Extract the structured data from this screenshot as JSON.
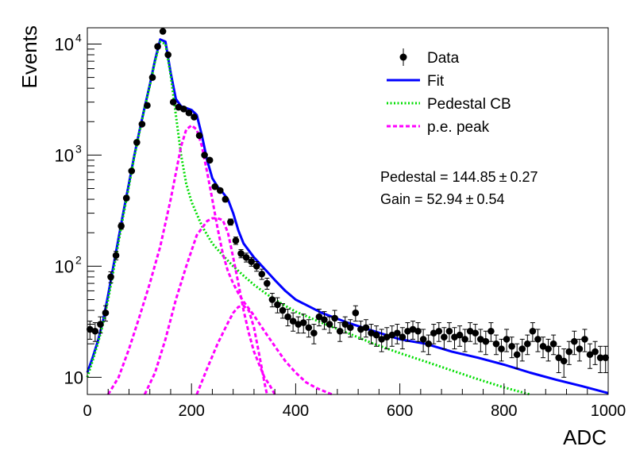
{
  "chart_data": {
    "type": "scatter",
    "xlabel": "ADC",
    "ylabel": "Events",
    "xlim": [
      0,
      1000
    ],
    "ylim": [
      7,
      14000
    ],
    "yscale": "log",
    "x_ticks": [
      0,
      200,
      400,
      600,
      800,
      1000
    ],
    "x_tick_labels": [
      "0",
      "200",
      "400",
      "600",
      "800",
      "1000"
    ],
    "y_ticks": [
      10,
      100,
      1000,
      10000
    ],
    "y_tick_labels": [
      {
        "base": "10",
        "exp": ""
      },
      {
        "base": "10",
        "exp": "2"
      },
      {
        "base": "10",
        "exp": "3"
      },
      {
        "base": "10",
        "exp": "4"
      }
    ],
    "legend": {
      "placement": "top-right",
      "entries": [
        {
          "label": "Data",
          "style": "marker",
          "color": "#000000"
        },
        {
          "label": "Fit",
          "style": "solid",
          "color": "#0000ff"
        },
        {
          "label": "Pedestal CB",
          "style": "dotted",
          "color": "#00dd00"
        },
        {
          "label": "p.e. peak",
          "style": "dashed",
          "color": "#ff00ff"
        }
      ]
    },
    "annotations": [
      {
        "text": "Pedestal = 144.85",
        "pm": "±",
        "value": "0.27"
      },
      {
        "text": "Gain = 52.94",
        "pm": "±",
        "value": "0.54"
      }
    ],
    "series": [
      {
        "name": "Data",
        "kind": "points",
        "color": "#000000",
        "x": [
          5,
          15,
          25,
          35,
          45,
          55,
          65,
          75,
          85,
          95,
          105,
          115,
          125,
          135,
          145,
          155,
          165,
          175,
          185,
          195,
          205,
          215,
          225,
          235,
          245,
          255,
          265,
          275,
          285,
          295,
          305,
          315,
          325,
          335,
          345,
          355,
          365,
          375,
          385,
          395,
          405,
          415,
          425,
          435,
          445,
          455,
          465,
          475,
          485,
          495,
          505,
          515,
          525,
          535,
          545,
          555,
          565,
          575,
          585,
          595,
          605,
          615,
          625,
          635,
          645,
          655,
          665,
          675,
          685,
          695,
          705,
          715,
          725,
          735,
          745,
          755,
          765,
          775,
          785,
          795,
          805,
          815,
          825,
          835,
          845,
          855,
          865,
          875,
          885,
          895,
          905,
          915,
          925,
          935,
          945,
          955,
          965,
          975,
          985,
          995
        ],
        "y": [
          27,
          26,
          30,
          38,
          80,
          125,
          230,
          410,
          720,
          1300,
          1900,
          2800,
          5000,
          9500,
          13000,
          8000,
          3000,
          2700,
          2600,
          2400,
          2200,
          1500,
          1000,
          900,
          520,
          480,
          400,
          250,
          170,
          130,
          120,
          110,
          100,
          85,
          70,
          50,
          45,
          40,
          35,
          32,
          30,
          31,
          28,
          25,
          35,
          33,
          30,
          34,
          26,
          30,
          28,
          38,
          27,
          28,
          25,
          24,
          22,
          23,
          24,
          25,
          23,
          26,
          27,
          26,
          22,
          20,
          25,
          26,
          23,
          26,
          23,
          24,
          22,
          26,
          25,
          22,
          21,
          26,
          20,
          18,
          22,
          19,
          16,
          18,
          20,
          26,
          22,
          19,
          18,
          20,
          15,
          14,
          17,
          21,
          18,
          22,
          16,
          17,
          15,
          15
        ],
        "err": [
          5,
          5,
          5,
          6,
          9,
          11,
          15,
          20,
          27,
          36,
          44,
          53,
          71,
          97,
          114,
          89,
          55,
          52,
          51,
          49,
          47,
          39,
          32,
          30,
          23,
          22,
          20,
          16,
          13,
          11,
          11,
          10,
          10,
          9,
          8,
          7,
          7,
          6,
          6,
          6,
          5,
          6,
          5,
          5,
          6,
          6,
          5,
          6,
          5,
          5,
          5,
          6,
          5,
          5,
          5,
          5,
          5,
          5,
          5,
          5,
          5,
          5,
          5,
          5,
          5,
          4,
          5,
          5,
          5,
          5,
          5,
          5,
          5,
          5,
          5,
          5,
          5,
          5,
          4,
          4,
          5,
          4,
          4,
          4,
          4,
          5,
          5,
          4,
          4,
          4,
          4,
          4,
          4,
          5,
          4,
          5,
          4,
          4,
          4,
          4
        ]
      },
      {
        "name": "Fit",
        "kind": "line",
        "color": "#0000ff",
        "x": [
          0,
          10,
          20,
          30,
          40,
          50,
          60,
          70,
          80,
          90,
          100,
          110,
          120,
          130,
          140,
          150,
          160,
          170,
          180,
          190,
          200,
          210,
          220,
          230,
          240,
          250,
          260,
          270,
          280,
          290,
          300,
          320,
          340,
          360,
          380,
          400,
          450,
          500,
          550,
          600,
          650,
          700,
          750,
          800,
          850,
          900,
          950,
          1000
        ],
        "y": [
          11,
          15,
          21,
          32,
          55,
          100,
          180,
          320,
          560,
          980,
          1650,
          2700,
          4300,
          7200,
          11000,
          10500,
          5500,
          3200,
          2750,
          2650,
          2550,
          2300,
          1500,
          900,
          620,
          520,
          460,
          400,
          300,
          210,
          160,
          120,
          95,
          75,
          60,
          50,
          38,
          31,
          26,
          22,
          20,
          17,
          15,
          13,
          11,
          9.5,
          8.3,
          7.2
        ]
      },
      {
        "name": "Pedestal CB",
        "kind": "line",
        "color": "#00dd00",
        "x": [
          0,
          10,
          20,
          30,
          40,
          50,
          60,
          70,
          80,
          90,
          100,
          110,
          120,
          130,
          140,
          150,
          160,
          170,
          180,
          190,
          200,
          220,
          240,
          260,
          280,
          300,
          320,
          340,
          360,
          380,
          400,
          450,
          500,
          550,
          600,
          650,
          700,
          750,
          800,
          850
        ],
        "y": [
          10,
          14,
          20,
          30,
          50,
          90,
          165,
          300,
          530,
          950,
          1600,
          2650,
          4200,
          7000,
          10500,
          10000,
          5200,
          2300,
          1000,
          550,
          380,
          230,
          160,
          125,
          100,
          82,
          68,
          58,
          50,
          44,
          39,
          31,
          25,
          20,
          16.5,
          13.8,
          11.5,
          9.6,
          8.1,
          7
        ]
      },
      {
        "name": "p.e. peak 1",
        "kind": "line",
        "color": "#ff00ff",
        "x": [
          40,
          60,
          80,
          100,
          120,
          140,
          160,
          180,
          190,
          200,
          210,
          220,
          230,
          240,
          250,
          260,
          270,
          280,
          290,
          300,
          320,
          340,
          360,
          380,
          400,
          420,
          440,
          470
        ],
        "y": [
          7,
          10,
          18,
          35,
          70,
          150,
          400,
          1200,
          1700,
          1850,
          1700,
          1200,
          700,
          400,
          220,
          130,
          90,
          70,
          57,
          48,
          36,
          26,
          19,
          14,
          11,
          9,
          8,
          7
        ]
      },
      {
        "name": "p.e. peak 2",
        "kind": "line",
        "color": "#ff00ff",
        "x": [
          110,
          130,
          150,
          170,
          190,
          210,
          230,
          240,
          250,
          260,
          270,
          280,
          290,
          300,
          310,
          320,
          340,
          350,
          360
        ],
        "y": [
          7,
          11,
          22,
          50,
          100,
          190,
          255,
          270,
          270,
          260,
          200,
          120,
          70,
          40,
          25,
          17,
          10,
          8.5,
          7
        ]
      },
      {
        "name": "p.e. peak 3",
        "kind": "line",
        "color": "#ff00ff",
        "x": [
          210,
          230,
          250,
          270,
          280,
          290,
          300,
          310,
          320,
          330,
          340,
          345
        ],
        "y": [
          7,
          12,
          20,
          31,
          38,
          43,
          44,
          40,
          28,
          16,
          9,
          7
        ]
      }
    ]
  }
}
